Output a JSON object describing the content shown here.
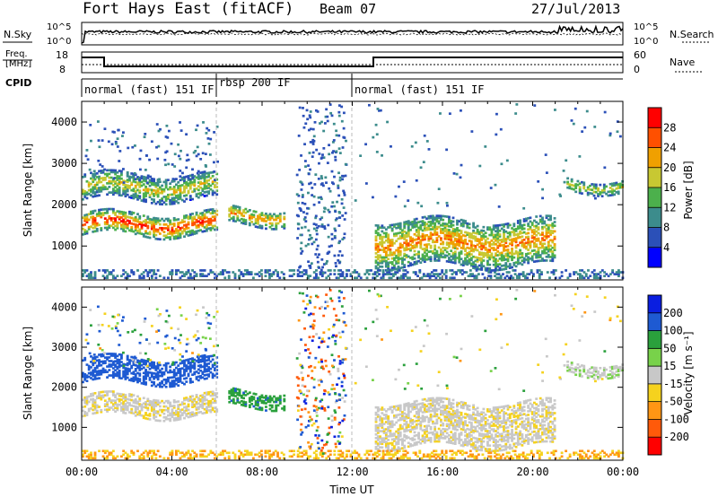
{
  "header": {
    "station": "Fort Hays East (fitACF)",
    "beam": "Beam 07",
    "date": "27/Jul/2013"
  },
  "noise_panel": {
    "left_label": "N.Sky",
    "left_ticks": [
      "10^5",
      "10^0"
    ],
    "right_ticks": [
      "10^5",
      "10^0"
    ],
    "right_label": "N.Search"
  },
  "freq_panel": {
    "label_top": "Freq.",
    "label_bottom": "[MHz]",
    "left_ticks": [
      "18",
      "8"
    ],
    "right_ticks": [
      "60",
      "0"
    ],
    "right_label": "Nave"
  },
  "cpid": {
    "label": "CPID",
    "segments": [
      {
        "name": "normal (fast) 151 IF",
        "start": 0,
        "end": 6
      },
      {
        "name": "rbsp 200 IF",
        "start": 6,
        "end": 12
      },
      {
        "name": "normal (fast) 151 IF",
        "start": 12,
        "end": 24
      }
    ]
  },
  "x_axis": {
    "label": "Time UT",
    "ticks": [
      "00:00",
      "04:00",
      "08:00",
      "12:00",
      "16:00",
      "20:00",
      "00:00"
    ]
  },
  "power_panel": {
    "ylabel": "Slant Range [km]",
    "yticks": [
      "4000",
      "3000",
      "2000",
      "1000"
    ],
    "colorbar_label": "Power [dB]",
    "colorbar_ticks": [
      "28",
      "24",
      "20",
      "16",
      "12",
      "8",
      "4"
    ],
    "colors": [
      "#0000ff",
      "#2b50b8",
      "#3c8c8c",
      "#4cb04c",
      "#c8c832",
      "#f0a000",
      "#ff5000",
      "#ff0000"
    ]
  },
  "velocity_panel": {
    "ylabel": "Slant Range [km]",
    "yticks": [
      "4000",
      "3000",
      "2000",
      "1000"
    ],
    "colorbar_label": "Velocity [m s⁻¹]",
    "colorbar_ticks": [
      "200",
      "100",
      "50",
      "15",
      "-15",
      "-50",
      "-100",
      "-200"
    ],
    "colors": [
      "#0a1ee0",
      "#1e5ad2",
      "#2aa03c",
      "#78d24a",
      "#c8c8c8",
      "#f5d21e",
      "#ff9614",
      "#ff5a0a",
      "#ff0000"
    ]
  },
  "chart_data": {
    "type": "heatmap",
    "title": "Fort Hays East (fitACF)",
    "xlabel": "Time UT",
    "ylabel": "Slant Range [km]",
    "x_range_hours": [
      0,
      24
    ],
    "y_range_km": [
      180,
      4500
    ],
    "series": [
      {
        "name": "Power [dB]",
        "value_range": [
          0,
          30
        ]
      },
      {
        "name": "Velocity [m s⁻¹]",
        "value_range": [
          -250,
          250
        ]
      }
    ],
    "echo_regions": [
      {
        "t0": 0.0,
        "t1": 6.0,
        "r0": 1250,
        "r1": 1750,
        "power": 24,
        "velocity": -10
      },
      {
        "t0": 0.0,
        "t1": 6.0,
        "r0": 2100,
        "r1": 2700,
        "power": 16,
        "velocity": 120
      },
      {
        "t0": 6.5,
        "t1": 9.0,
        "r0": 1500,
        "r1": 1900,
        "power": 20,
        "velocity": 60
      },
      {
        "t0": 13.0,
        "t1": 21.0,
        "r0": 500,
        "r1": 1600,
        "power": 20,
        "velocity": -5
      },
      {
        "t0": 21.5,
        "t1": 24.0,
        "r0": 2300,
        "r1": 2600,
        "power": 16,
        "velocity": 5
      }
    ]
  }
}
